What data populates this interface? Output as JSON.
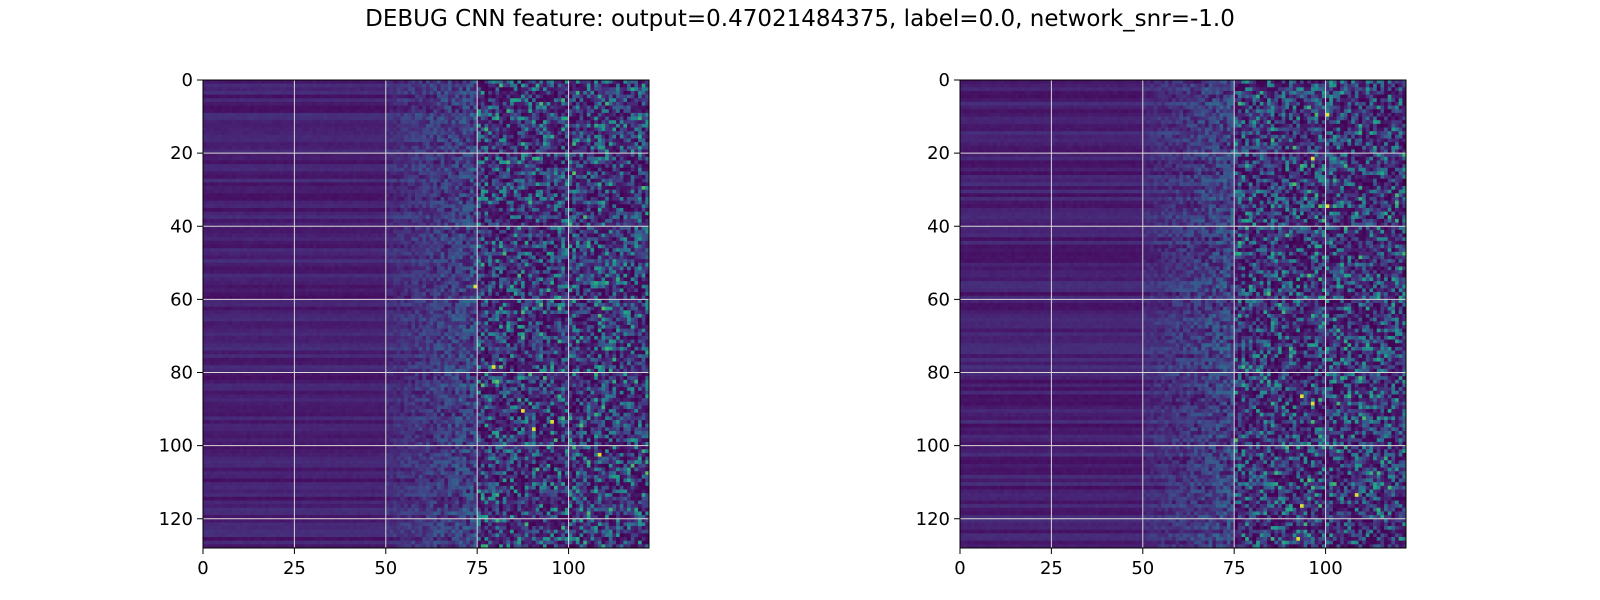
{
  "figure": {
    "title": "DEBUG CNN feature: output=0.47021484375, label=0.0, network_snr=-1.0"
  },
  "colormap": "viridis",
  "chart_data": [
    {
      "type": "heatmap",
      "name": "left-panel",
      "rows": 128,
      "cols": 122,
      "xlim": [
        0,
        122
      ],
      "ylim": [
        128,
        0
      ],
      "xticks": [
        0,
        25,
        50,
        75,
        100
      ],
      "yticks": [
        0,
        20,
        40,
        60,
        80,
        100,
        120
      ],
      "grid": true,
      "texture": {
        "low_band_end": 50,
        "mid_band_end": 75,
        "seed": 7,
        "bright_spots": [
          [
            56,
            74
          ],
          [
            90,
            87
          ],
          [
            93,
            95
          ],
          [
            95,
            90
          ],
          [
            78,
            79
          ],
          [
            102,
            108
          ]
        ]
      }
    },
    {
      "type": "heatmap",
      "name": "right-panel",
      "rows": 128,
      "cols": 122,
      "xlim": [
        0,
        122
      ],
      "ylim": [
        128,
        0
      ],
      "xticks": [
        0,
        25,
        50,
        75,
        100
      ],
      "yticks": [
        0,
        20,
        40,
        60,
        80,
        100,
        120
      ],
      "grid": true,
      "texture": {
        "low_band_end": 50,
        "mid_band_end": 75,
        "seed": 13,
        "bright_spots": [
          [
            21,
            96
          ],
          [
            86,
            93
          ],
          [
            88,
            96
          ],
          [
            116,
            93
          ],
          [
            113,
            108
          ],
          [
            125,
            92
          ],
          [
            34,
            100
          ],
          [
            9,
            100
          ]
        ]
      }
    }
  ]
}
